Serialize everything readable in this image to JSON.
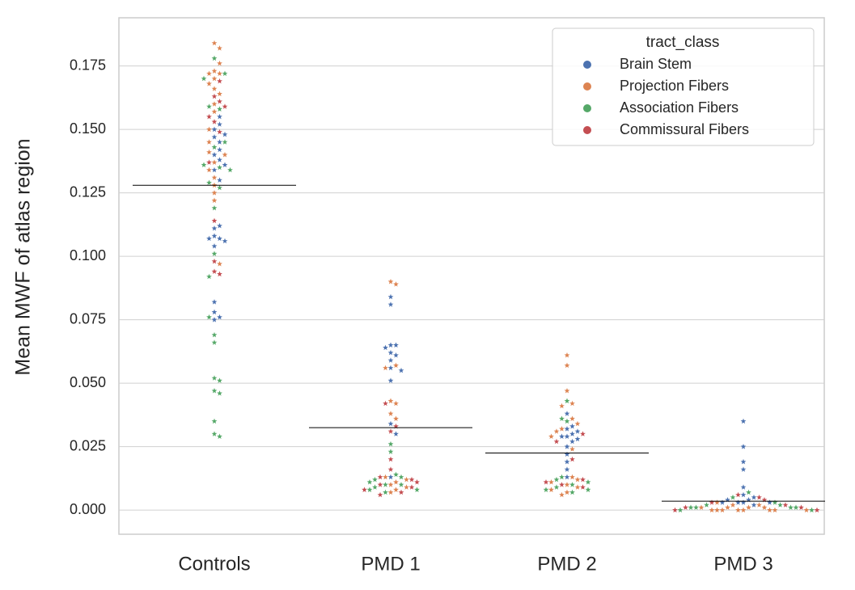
{
  "chart_data": {
    "type": "swarm",
    "y_label": "Mean MWF of atlas region",
    "categories": [
      "Controls",
      "PMD 1",
      "PMD 2",
      "PMD 3"
    ],
    "legend_title": "tract_class",
    "legend_position": "upper right",
    "grid": true,
    "ylim": [
      -0.0095,
      0.194
    ],
    "yticks": [
      {
        "value": 0,
        "label": "0.000"
      },
      {
        "value": 0.025,
        "label": "0.025"
      },
      {
        "value": 0.05,
        "label": "0.050"
      },
      {
        "value": 0.075,
        "label": "0.075"
      },
      {
        "value": 0.1,
        "label": "0.100"
      },
      {
        "value": 0.125,
        "label": "0.125"
      },
      {
        "value": 0.15,
        "label": "0.150"
      },
      {
        "value": 0.175,
        "label": "0.175"
      }
    ],
    "medians": [
      0.128,
      0.0325,
      0.0225,
      0.0035
    ],
    "series": [
      {
        "name": "Brain Stem",
        "color": "#4c72b0",
        "values": [
          [
            0.155,
            0.152,
            0.15,
            0.148,
            0.147,
            0.145,
            0.142,
            0.14,
            0.138,
            0.136,
            0.134,
            0.13,
            0.112,
            0.111,
            0.108,
            0.107,
            0.107,
            0.106,
            0.104,
            0.082,
            0.078,
            0.076,
            0.075
          ],
          [
            0.084,
            0.081,
            0.065,
            0.065,
            0.064,
            0.062,
            0.061,
            0.059,
            0.056,
            0.055,
            0.051,
            0.034,
            0.03,
            0.013
          ],
          [
            0.038,
            0.033,
            0.032,
            0.031,
            0.03,
            0.029,
            0.029,
            0.028,
            0.027,
            0.025,
            0.022,
            0.019,
            0.016,
            0.013
          ],
          [
            0.035,
            0.025,
            0.019,
            0.016,
            0.009,
            0.006,
            0.005,
            0.004,
            0.004,
            0.003,
            0.003,
            0.003,
            0.003,
            0.002
          ]
        ]
      },
      {
        "name": "Projection Fibers",
        "color": "#dd8452",
        "values": [
          [
            0.184,
            0.182,
            0.176,
            0.173,
            0.172,
            0.172,
            0.17,
            0.168,
            0.166,
            0.164,
            0.16,
            0.157,
            0.15,
            0.145,
            0.141,
            0.14,
            0.137,
            0.134,
            0.131,
            0.128,
            0.125,
            0.122,
            0.097
          ],
          [
            0.09,
            0.089,
            0.057,
            0.056,
            0.043,
            0.042,
            0.038,
            0.036,
            0.013,
            0.012,
            0.011,
            0.01,
            0.009,
            0.008,
            0.007
          ],
          [
            0.061,
            0.057,
            0.047,
            0.042,
            0.041,
            0.036,
            0.034,
            0.032,
            0.031,
            0.029,
            0.024,
            0.013,
            0.012,
            0.011,
            0.01,
            0.009,
            0.008,
            0.007,
            0.006
          ],
          [
            0.003,
            0.002,
            0.002,
            0.001,
            0.001,
            0.001,
            0.001,
            0,
            0,
            0,
            0,
            0,
            0,
            0,
            0
          ]
        ]
      },
      {
        "name": "Association Fibers",
        "color": "#55a868",
        "values": [
          [
            0.178,
            0.172,
            0.17,
            0.159,
            0.158,
            0.145,
            0.143,
            0.136,
            0.135,
            0.134,
            0.129,
            0.127,
            0.119,
            0.101,
            0.092,
            0.076,
            0.069,
            0.066,
            0.052,
            0.051,
            0.047,
            0.046,
            0.035,
            0.03,
            0.029
          ],
          [
            0.026,
            0.023,
            0.014,
            0.013,
            0.012,
            0.011,
            0.01,
            0.01,
            0.009,
            0.008,
            0.008,
            0.007
          ],
          [
            0.043,
            0.036,
            0.035,
            0.013,
            0.012,
            0.011,
            0.01,
            0.009,
            0.008,
            0.008,
            0.007
          ],
          [
            0.007,
            0.005,
            0.003,
            0.002,
            0.002,
            0.001,
            0.001,
            0.001,
            0.001,
            0,
            0
          ]
        ]
      },
      {
        "name": "Commissural Fibers",
        "color": "#c44e52",
        "values": [
          [
            0.169,
            0.163,
            0.161,
            0.159,
            0.155,
            0.153,
            0.149,
            0.137,
            0.114,
            0.098,
            0.094,
            0.093
          ],
          [
            0.042,
            0.033,
            0.031,
            0.02,
            0.016,
            0.013,
            0.012,
            0.011,
            0.01,
            0.009,
            0.008,
            0.007,
            0.006
          ],
          [
            0.03,
            0.027,
            0.02,
            0.012,
            0.011,
            0.01,
            0.009
          ],
          [
            0.006,
            0.005,
            0.004,
            0.003,
            0.002,
            0.001,
            0.001,
            0,
            0
          ]
        ]
      }
    ]
  }
}
